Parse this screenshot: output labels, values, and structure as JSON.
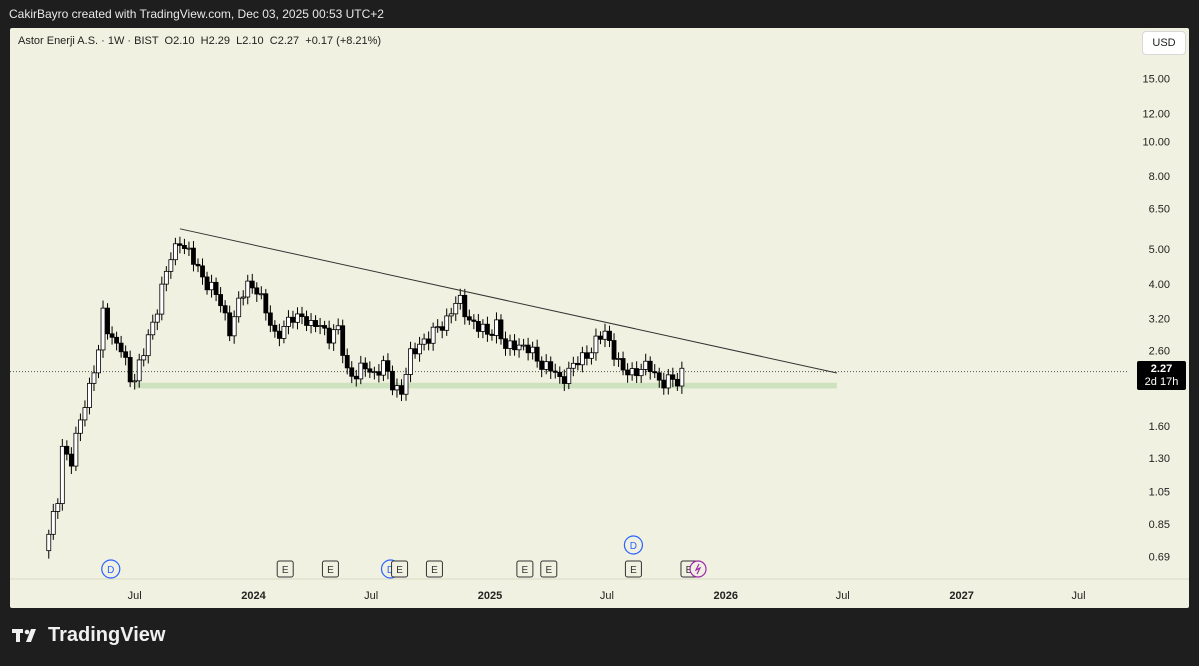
{
  "header": {
    "attribution": "CakirBayro created with TradingView.com, Dec 03, 2025 00:53 UTC+2"
  },
  "legend": {
    "name": "Astor Enerji A.S.",
    "interval": "1W",
    "exchange": "BIST",
    "o": "O2.10",
    "h": "H2.29",
    "l": "L2.10",
    "c": "C2.27",
    "change": "+0.17 (+8.21%)"
  },
  "currency_button": "USD",
  "price_label": {
    "price": "2.27",
    "countdown": "2d 17h"
  },
  "footer": {
    "brand": "TradingView"
  },
  "colors": {
    "panel_bg": "#f1f1e1",
    "candle": "#000000",
    "support_zone": "#cfe2c0",
    "event_d": "#2962ff",
    "event_e": "#333333",
    "event_split": "#9c27b0"
  },
  "chart_data": {
    "type": "candlestick",
    "y_scale": "log",
    "ylim": [
      0.62,
      19.5
    ],
    "xlim": [
      "2022-12-20",
      "2027-08-28"
    ],
    "y_ticks": [
      "15.00",
      "12.00",
      "10.00",
      "8.00",
      "6.50",
      "5.00",
      "4.00",
      "3.20",
      "2.60",
      "2.10",
      "1.60",
      "1.30",
      "1.05",
      "0.85",
      "0.69"
    ],
    "x_ticks": [
      {
        "date": "2023-07-01",
        "label": "Jul",
        "major": false
      },
      {
        "date": "2024-01-01",
        "label": "2024",
        "major": true
      },
      {
        "date": "2024-07-01",
        "label": "Jul",
        "major": false
      },
      {
        "date": "2025-01-01",
        "label": "2025",
        "major": true
      },
      {
        "date": "2025-07-01",
        "label": "Jul",
        "major": false
      },
      {
        "date": "2026-01-01",
        "label": "2026",
        "major": true
      },
      {
        "date": "2026-07-01",
        "label": "Jul",
        "major": false
      },
      {
        "date": "2027-01-01",
        "label": "2027",
        "major": true
      },
      {
        "date": "2027-07-01",
        "label": "Jul",
        "major": false
      }
    ],
    "close_path": [
      [
        "2023-02-18",
        0.78
      ],
      [
        "2023-03-04",
        1.02
      ],
      [
        "2023-03-11",
        1.4
      ],
      [
        "2023-03-25",
        1.25
      ],
      [
        "2023-04-08",
        1.7
      ],
      [
        "2023-04-22",
        2.05
      ],
      [
        "2023-05-06",
        2.55
      ],
      [
        "2023-05-13",
        3.35
      ],
      [
        "2023-05-27",
        2.8
      ],
      [
        "2023-06-10",
        2.6
      ],
      [
        "2023-06-24",
        2.2
      ],
      [
        "2023-07-01",
        2.2
      ],
      [
        "2023-07-15",
        2.55
      ],
      [
        "2023-07-29",
        3.1
      ],
      [
        "2023-08-12",
        3.9
      ],
      [
        "2023-08-26",
        4.7
      ],
      [
        "2023-09-09",
        5.35
      ],
      [
        "2023-09-16",
        5.1
      ],
      [
        "2023-09-30",
        4.6
      ],
      [
        "2023-10-14",
        4.2
      ],
      [
        "2023-10-28",
        3.9
      ],
      [
        "2023-11-11",
        3.5
      ],
      [
        "2023-11-25",
        3.0
      ],
      [
        "2023-12-09",
        3.5
      ],
      [
        "2023-12-23",
        4.0
      ],
      [
        "2024-01-06",
        3.9
      ],
      [
        "2024-01-20",
        3.3
      ],
      [
        "2024-02-03",
        2.9
      ],
      [
        "2024-02-17",
        3.0
      ],
      [
        "2024-03-02",
        3.2
      ],
      [
        "2024-03-16",
        3.3
      ],
      [
        "2024-03-30",
        3.0
      ],
      [
        "2024-04-13",
        3.1
      ],
      [
        "2024-04-27",
        2.85
      ],
      [
        "2024-05-11",
        2.95
      ],
      [
        "2024-05-25",
        2.3
      ],
      [
        "2024-06-08",
        2.2
      ],
      [
        "2024-06-22",
        2.35
      ],
      [
        "2024-07-06",
        2.25
      ],
      [
        "2024-07-20",
        2.35
      ],
      [
        "2024-08-03",
        2.1
      ],
      [
        "2024-08-17",
        2.0
      ],
      [
        "2024-08-31",
        2.5
      ],
      [
        "2024-09-14",
        2.75
      ],
      [
        "2024-09-28",
        2.8
      ],
      [
        "2024-10-12",
        3.0
      ],
      [
        "2024-10-26",
        3.2
      ],
      [
        "2024-11-09",
        3.5
      ],
      [
        "2024-11-16",
        3.55
      ],
      [
        "2024-11-30",
        3.2
      ],
      [
        "2024-12-14",
        3.0
      ],
      [
        "2024-12-28",
        2.9
      ],
      [
        "2025-01-11",
        3.1
      ],
      [
        "2025-01-25",
        2.6
      ],
      [
        "2025-02-08",
        2.75
      ],
      [
        "2025-02-22",
        2.65
      ],
      [
        "2025-03-08",
        2.55
      ],
      [
        "2025-03-22",
        2.4
      ],
      [
        "2025-04-05",
        2.3
      ],
      [
        "2025-04-19",
        2.15
      ],
      [
        "2025-05-03",
        2.3
      ],
      [
        "2025-05-17",
        2.4
      ],
      [
        "2025-05-31",
        2.55
      ],
      [
        "2025-06-14",
        2.75
      ],
      [
        "2025-06-28",
        2.9
      ],
      [
        "2025-07-12",
        2.6
      ],
      [
        "2025-07-26",
        2.25
      ],
      [
        "2025-08-09",
        2.25
      ],
      [
        "2025-08-23",
        2.35
      ],
      [
        "2025-09-06",
        2.3
      ],
      [
        "2025-09-20",
        2.15
      ],
      [
        "2025-10-04",
        2.15
      ],
      [
        "2025-10-18",
        2.1
      ],
      [
        "2025-10-25",
        2.27
      ]
    ],
    "trendline": [
      [
        "2023-09-09",
        5.7
      ],
      [
        "2026-06-22",
        2.25
      ]
    ],
    "support_zone": {
      "from": "2023-07-01",
      "to": "2026-06-22",
      "low": 2.05,
      "high": 2.1
    },
    "last_price": 2.27,
    "events": [
      {
        "date": "2023-05-25",
        "type": "D",
        "row": 1
      },
      {
        "date": "2024-02-19",
        "type": "E",
        "row": 1
      },
      {
        "date": "2024-04-29",
        "type": "E",
        "row": 1
      },
      {
        "date": "2024-07-31",
        "type": "D",
        "row": 1
      },
      {
        "date": "2024-08-14",
        "type": "E",
        "row": 1
      },
      {
        "date": "2024-10-07",
        "type": "E",
        "row": 1
      },
      {
        "date": "2025-02-24",
        "type": "E",
        "row": 1
      },
      {
        "date": "2025-04-02",
        "type": "E",
        "row": 1
      },
      {
        "date": "2025-08-11",
        "type": "E",
        "row": 1
      },
      {
        "date": "2025-08-11",
        "type": "D",
        "row": 2
      },
      {
        "date": "2025-11-05",
        "type": "E",
        "row": 1
      },
      {
        "date": "2025-11-19",
        "type": "split",
        "row": 1
      }
    ]
  }
}
